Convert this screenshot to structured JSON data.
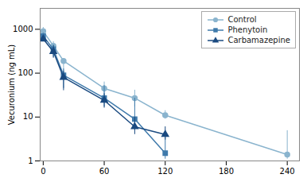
{
  "chart_data": {
    "type": "line",
    "ylabel": "Vecuronium (ng mL)",
    "log": "y",
    "xlim": [
      -3,
      252
    ],
    "ylim": [
      1,
      3000
    ],
    "xticks": [
      0,
      60,
      120,
      180,
      240
    ],
    "yticks": [
      1,
      10,
      100,
      1000
    ],
    "legend": "upper right",
    "x": [
      0,
      10,
      20,
      60,
      90,
      120,
      240
    ],
    "series": [
      {
        "name": "Control",
        "color": "#8ab4ce",
        "marker": "circle",
        "values": [
          900,
          420,
          190,
          45,
          27,
          11,
          1.4
        ],
        "yerr_lo": [
          100,
          160,
          100,
          18,
          10,
          2,
          0.3
        ],
        "yerr_hi": [
          200,
          100,
          20,
          18,
          14,
          3,
          3.5
        ]
      },
      {
        "name": "Phenytoin",
        "color": "#3f7aab",
        "marker": "square",
        "values": [
          700,
          350,
          90,
          27,
          9,
          1.5,
          null
        ],
        "yerr_lo": [
          80,
          120,
          45,
          10,
          4,
          0.4,
          null
        ],
        "yerr_hi": [
          120,
          90,
          35,
          25,
          18,
          2.0,
          null
        ]
      },
      {
        "name": "Carbamazepine",
        "color": "#1a4a80",
        "marker": "triangle",
        "values": [
          600,
          310,
          80,
          24,
          6,
          4.0,
          null
        ],
        "yerr_lo": [
          60,
          90,
          40,
          8,
          2,
          1.0,
          null
        ],
        "yerr_hi": [
          90,
          110,
          30,
          10,
          4,
          2.0,
          null
        ]
      }
    ]
  }
}
